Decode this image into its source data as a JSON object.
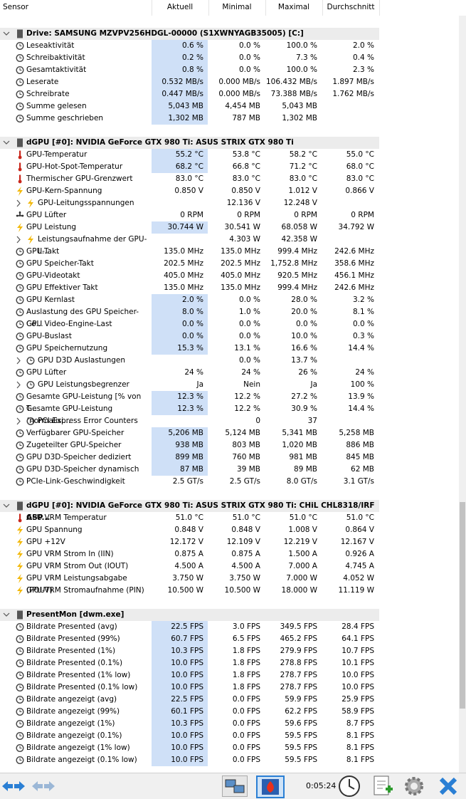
{
  "header": {
    "columns": [
      "Sensor",
      "Aktuell",
      "Minimal",
      "Maximal",
      "Durchschnitt"
    ]
  },
  "sections": [
    {
      "title": "Drive: SAMSUNG MZVPV256HDGL-00000 (S1XWNYAGB35005) [C:]",
      "rows": [
        [
          "Leseaktivität",
          "0.6 %",
          "0.0 %",
          "100.0 %",
          "2.0 %"
        ],
        [
          "Schreibaktivität",
          "0.2 %",
          "0.0 %",
          "7.3 %",
          "0.4 %"
        ],
        [
          "Gesamtaktivität",
          "0.8 %",
          "0.0 %",
          "100.0 %",
          "2.3 %"
        ],
        [
          "Leserate",
          "0.532 MB/s",
          "0.000 MB/s",
          "106.432 MB/s",
          "1.897 MB/s"
        ],
        [
          "Schreibrate",
          "0.447 MB/s",
          "0.000 MB/s",
          "73.388 MB/s",
          "1.762 MB/s"
        ],
        [
          "Summe gelesen",
          "5,043 MB",
          "4,454 MB",
          "5,043 MB",
          null
        ],
        [
          "Summe geschrieben",
          "1,302 MB",
          "787 MB",
          "1,302 MB",
          null
        ]
      ]
    },
    {
      "title": "dGPU [#0]: NVIDIA GeForce GTX 980 Ti: ASUS STRIX GTX 980 Ti",
      "rows": [
        [
          "GPU-Temperatur",
          "55.2 °C",
          "53.8 °C",
          "58.2 °C",
          "55.0 °C"
        ],
        [
          "GPU-Hot-Spot-Temperatur",
          "68.2 °C",
          "66.8 °C",
          "71.2 °C",
          "68.0 °C"
        ],
        [
          "Thermischer GPU-Grenzwert",
          "83.0 °C",
          "83.0 °C",
          "83.0 °C",
          "83.0 °C"
        ],
        [
          "GPU-Kern-Spannung",
          "0.850 V",
          "0.850 V",
          "1.012 V",
          "0.866 V"
        ],
        [
          "GPU-Leitungsspannungen",
          null,
          "12.136 V",
          "12.248 V",
          null
        ],
        [
          "GPU Lüfter",
          "0 RPM",
          "0 RPM",
          "0 RPM",
          "0 RPM"
        ],
        [
          "GPU Leistung",
          "30.744 W",
          "30.541 W",
          "68.058 W",
          "34.792 W"
        ],
        [
          "Leistungsaufnahme der GPU-L...",
          null,
          "4.303 W",
          "42.358 W",
          null
        ],
        [
          "GPU-Takt",
          "135.0 MHz",
          "135.0 MHz",
          "999.4 MHz",
          "242.6 MHz"
        ],
        [
          "GPU Speicher-Takt",
          "202.5 MHz",
          "202.5 MHz",
          "1,752.8 MHz",
          "358.6 MHz"
        ],
        [
          "GPU-Videotakt",
          "405.0 MHz",
          "405.0 MHz",
          "920.5 MHz",
          "456.1 MHz"
        ],
        [
          "GPU Effektiver Takt",
          "135.0 MHz",
          "135.0 MHz",
          "999.4 MHz",
          "242.6 MHz"
        ],
        [
          "GPU Kernlast",
          "2.0 %",
          "0.0 %",
          "28.0 %",
          "3.2 %"
        ],
        [
          "Auslastung des GPU Speicher-Co...",
          "8.0 %",
          "1.0 %",
          "20.0 %",
          "8.1 %"
        ],
        [
          "GPU Video-Engine-Last",
          "0.0 %",
          "0.0 %",
          "0.0 %",
          "0.0 %"
        ],
        [
          "GPU-Buslast",
          "0.0 %",
          "0.0 %",
          "10.0 %",
          "0.3 %"
        ],
        [
          "GPU Speichernutzung",
          "15.3 %",
          "13.1 %",
          "16.6 %",
          "14.4 %"
        ],
        [
          "GPU D3D Auslastungen",
          null,
          "0.0 %",
          "13.7 %",
          null
        ],
        [
          "GPU Lüfter",
          "24 %",
          "24 %",
          "26 %",
          "24 %"
        ],
        [
          "GPU Leistungsbegrenzer",
          "Ja",
          "Nein",
          "Ja",
          "100 %"
        ],
        [
          "Gesamte GPU-Leistung [% von T...",
          "12.3 %",
          "12.2 %",
          "27.2 %",
          "13.9 %"
        ],
        [
          "Gesamte GPU-Leistung (normalisi...",
          "12.3 %",
          "12.2 %",
          "30.9 %",
          "14.4 %"
        ],
        [
          "PCI Express Error Counters",
          null,
          "0",
          "37",
          null
        ],
        [
          "Verfügbarer GPU-Speicher",
          "5,206 MB",
          "5,124 MB",
          "5,341 MB",
          "5,258 MB"
        ],
        [
          "Zugeteilter GPU-Speicher",
          "938 MB",
          "803 MB",
          "1,020 MB",
          "886 MB"
        ],
        [
          "GPU D3D-Speicher dediziert",
          "899 MB",
          "760 MB",
          "981 MB",
          "845 MB"
        ],
        [
          "GPU D3D-Speicher dynamisch",
          "87 MB",
          "39 MB",
          "89 MB",
          "62 MB"
        ],
        [
          "PCIe-Link-Geschwindigkeit",
          "2.5 GT/s",
          "2.5 GT/s",
          "8.0 GT/s",
          "3.1 GT/s"
        ]
      ]
    },
    {
      "title": "dGPU [#0]: NVIDIA GeForce GTX 980 Ti: ASUS STRIX GTX 980 Ti: CHiL CHL8318/IRF ASP...",
      "rows": [
        [
          "GPU VRM Temperatur",
          "51.0 °C",
          "51.0 °C",
          "51.0 °C",
          "51.0 °C"
        ],
        [
          "GPU Spannung",
          "0.848 V",
          "0.848 V",
          "1.008 V",
          "0.864 V"
        ],
        [
          "GPU +12V",
          "12.172 V",
          "12.109 V",
          "12.219 V",
          "12.167 V"
        ],
        [
          "GPU VRM Strom In (IIN)",
          "0.875 A",
          "0.875 A",
          "1.500 A",
          "0.926 A"
        ],
        [
          "GPU VRM Strom Out (IOUT)",
          "4.500 A",
          "4.500 A",
          "7.000 A",
          "4.745 A"
        ],
        [
          "GPU VRM Leistungsabgabe (POUT)",
          "3.750 W",
          "3.750 W",
          "7.000 W",
          "4.052 W"
        ],
        [
          "GPU-VRM Stromaufnahme (PIN)",
          "10.500 W",
          "10.500 W",
          "18.000 W",
          "11.119 W"
        ]
      ]
    },
    {
      "title": "PresentMon [dwm.exe]",
      "rows": [
        [
          "Bildrate Presented (avg)",
          "22.5 FPS",
          "3.0 FPS",
          "349.5 FPS",
          "28.4 FPS"
        ],
        [
          "Bildrate Presented (99%)",
          "60.7 FPS",
          "6.5 FPS",
          "465.2 FPS",
          "64.1 FPS"
        ],
        [
          "Bildrate Presented (1%)",
          "10.3 FPS",
          "1.8 FPS",
          "279.9 FPS",
          "10.7 FPS"
        ],
        [
          "Bildrate Presented (0.1%)",
          "10.0 FPS",
          "1.8 FPS",
          "278.8 FPS",
          "10.1 FPS"
        ],
        [
          "Bildrate Presented (1% low)",
          "10.0 FPS",
          "1.8 FPS",
          "278.7 FPS",
          "10.0 FPS"
        ],
        [
          "Bildrate Presented (0.1% low)",
          "10.0 FPS",
          "1.8 FPS",
          "278.7 FPS",
          "10.0 FPS"
        ],
        [
          "Bildrate angezeigt (avg)",
          "22.5 FPS",
          "0.0 FPS",
          "59.9 FPS",
          "25.9 FPS"
        ],
        [
          "Bildrate angezeigt (99%)",
          "60.1 FPS",
          "0.0 FPS",
          "62.2 FPS",
          "58.9 FPS"
        ],
        [
          "Bildrate angezeigt (1%)",
          "10.3 FPS",
          "0.0 FPS",
          "59.6 FPS",
          "8.7 FPS"
        ],
        [
          "Bildrate angezeigt (0.1%)",
          "10.0 FPS",
          "0.0 FPS",
          "59.5 FPS",
          "8.1 FPS"
        ],
        [
          "Bildrate angezeigt (1% low)",
          "10.0 FPS",
          "0.0 FPS",
          "59.5 FPS",
          "8.1 FPS"
        ],
        [
          "Bildrate angezeigt (0.1% low)",
          "10.0 FPS",
          "0.0 FPS",
          "59.5 FPS",
          "8.1 FPS"
        ]
      ]
    }
  ],
  "toolbar": {
    "time": "0:05:24"
  }
}
